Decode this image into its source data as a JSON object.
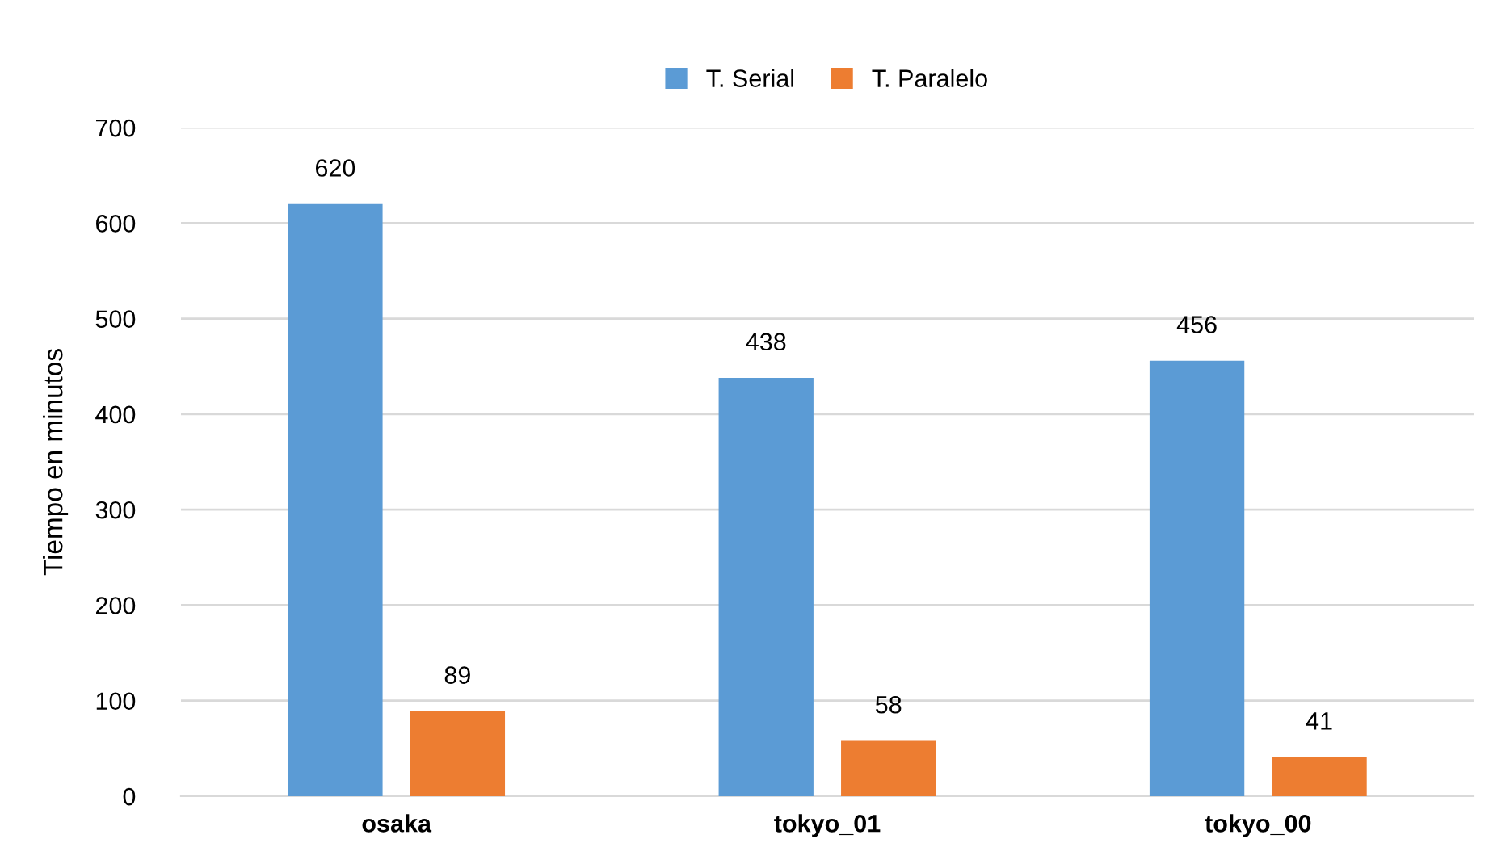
{
  "chart_data": {
    "type": "bar",
    "categories": [
      "osaka",
      "tokyo_01",
      "tokyo_00"
    ],
    "series": [
      {
        "name": "T. Serial",
        "color": "#5b9bd5",
        "values": [
          620,
          438,
          456
        ]
      },
      {
        "name": "T. Paralelo",
        "color": "#ed7d31",
        "values": [
          89,
          58,
          41
        ]
      }
    ],
    "ylabel": "Tiempo en minutos",
    "ylim": [
      0,
      700
    ],
    "yticks": [
      0,
      100,
      200,
      300,
      400,
      500,
      600,
      700
    ],
    "grid": "y",
    "legend": "top",
    "data_labels": true
  }
}
